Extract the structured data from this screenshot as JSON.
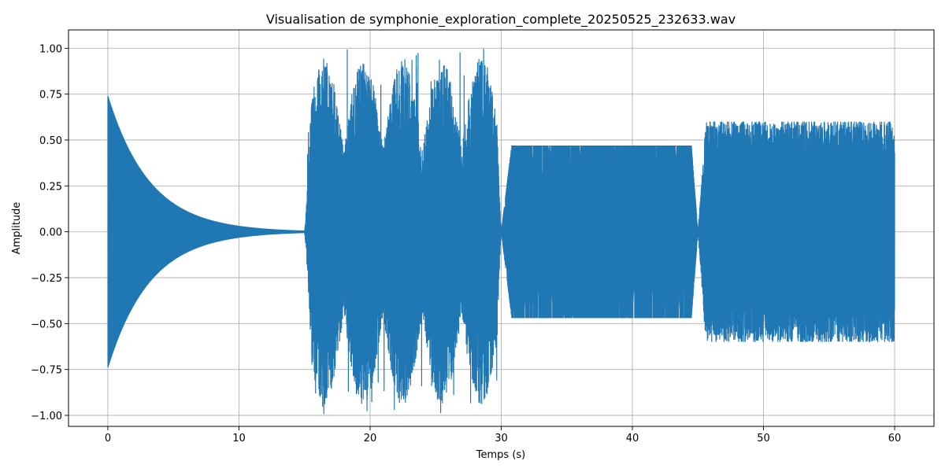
{
  "chart_data": {
    "type": "line",
    "title": "Visualisation de symphonie_exploration_complete_20250525_232633.wav",
    "xlabel": "Temps (s)",
    "ylabel": "Amplitude",
    "xlim": [
      -3,
      63
    ],
    "ylim": [
      -1.06,
      1.1
    ],
    "xticks": [
      0,
      10,
      20,
      30,
      40,
      50,
      60
    ],
    "yticks": [
      -1.0,
      -0.75,
      -0.5,
      -0.25,
      0.0,
      0.25,
      0.5,
      0.75,
      1.0
    ],
    "xtick_labels": [
      "0",
      "10",
      "20",
      "30",
      "40",
      "50",
      "60"
    ],
    "ytick_labels": [
      "−1.00",
      "−0.75",
      "−0.50",
      "−0.25",
      "0.00",
      "0.25",
      "0.50",
      "0.75",
      "1.00"
    ],
    "grid": true,
    "color": "#1f77b4",
    "series": [
      {
        "segments": [
          {
            "start": 0,
            "end": 15,
            "shape": "decay",
            "peak": 0.74
          },
          {
            "start": 15,
            "end": 30,
            "shape": "modulated",
            "peak": 1.0,
            "peak_min": -0.96
          },
          {
            "start": 30,
            "end": 45,
            "shape": "steady",
            "peak": 0.47
          },
          {
            "start": 45,
            "end": 60,
            "shape": "noise",
            "peak": 0.6
          }
        ]
      }
    ]
  }
}
